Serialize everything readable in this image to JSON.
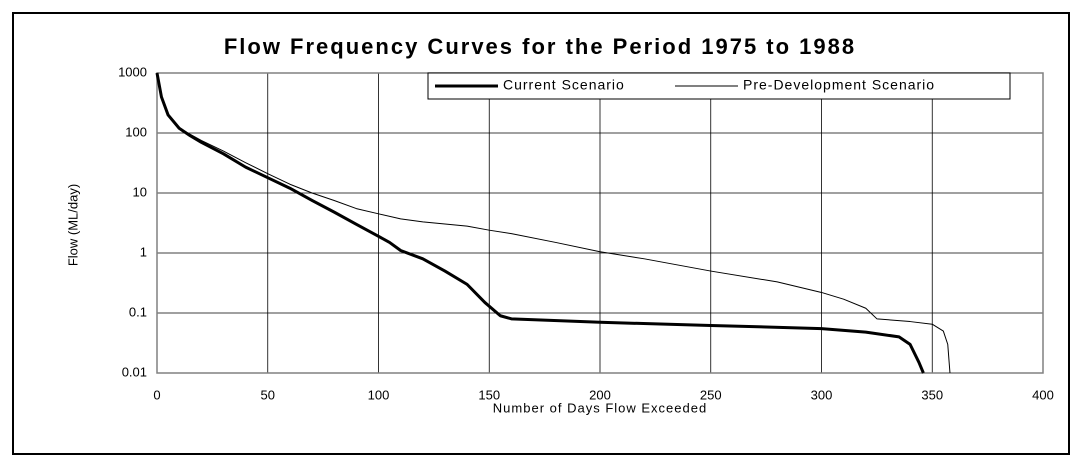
{
  "chart_data": {
    "type": "line",
    "title": "Flow Frequency Curves for the Period 1975 to 1988",
    "x_label": "Number of Days  Flow Exceeded",
    "y_label": "Flow (ML/day)",
    "xlim": [
      0,
      400
    ],
    "xticks": [
      0,
      50,
      100,
      150,
      200,
      250,
      300,
      350,
      400
    ],
    "ylim": [
      0.01,
      1000
    ],
    "yticks": [
      1000,
      100,
      10,
      1,
      0.1,
      0.01
    ],
    "log_y": true,
    "grid": true,
    "legend": "top-right",
    "series": [
      {
        "name": "Current Scenario",
        "color": "#000000",
        "line_width": 3,
        "x": [
          0,
          2,
          5,
          10,
          15,
          20,
          30,
          40,
          50,
          60,
          70,
          80,
          90,
          100,
          105,
          110,
          120,
          130,
          140,
          148,
          155,
          160,
          200,
          250,
          300,
          320,
          335,
          340,
          344,
          346
        ],
        "values": [
          1000,
          400,
          200,
          120,
          90,
          70,
          45,
          27,
          18,
          12,
          7.5,
          4.8,
          3,
          1.9,
          1.5,
          1.1,
          0.8,
          0.5,
          0.3,
          0.15,
          0.09,
          0.08,
          0.07,
          0.062,
          0.055,
          0.048,
          0.04,
          0.03,
          0.015,
          0.01
        ]
      },
      {
        "name": "Pre-Development Scenario",
        "color": "#000000",
        "line_width": 1,
        "x": [
          0,
          2,
          5,
          10,
          15,
          20,
          30,
          40,
          50,
          60,
          70,
          80,
          90,
          100,
          110,
          120,
          140,
          150,
          160,
          180,
          200,
          220,
          250,
          280,
          300,
          310,
          320,
          325,
          340,
          350,
          355,
          357,
          358
        ],
        "values": [
          1000,
          400,
          200,
          120,
          95,
          75,
          50,
          32,
          21,
          14,
          10,
          7.5,
          5.5,
          4.5,
          3.7,
          3.3,
          2.8,
          2.4,
          2.1,
          1.5,
          1.05,
          0.8,
          0.5,
          0.33,
          0.22,
          0.17,
          0.12,
          0.08,
          0.072,
          0.065,
          0.05,
          0.03,
          0.01
        ]
      }
    ]
  }
}
